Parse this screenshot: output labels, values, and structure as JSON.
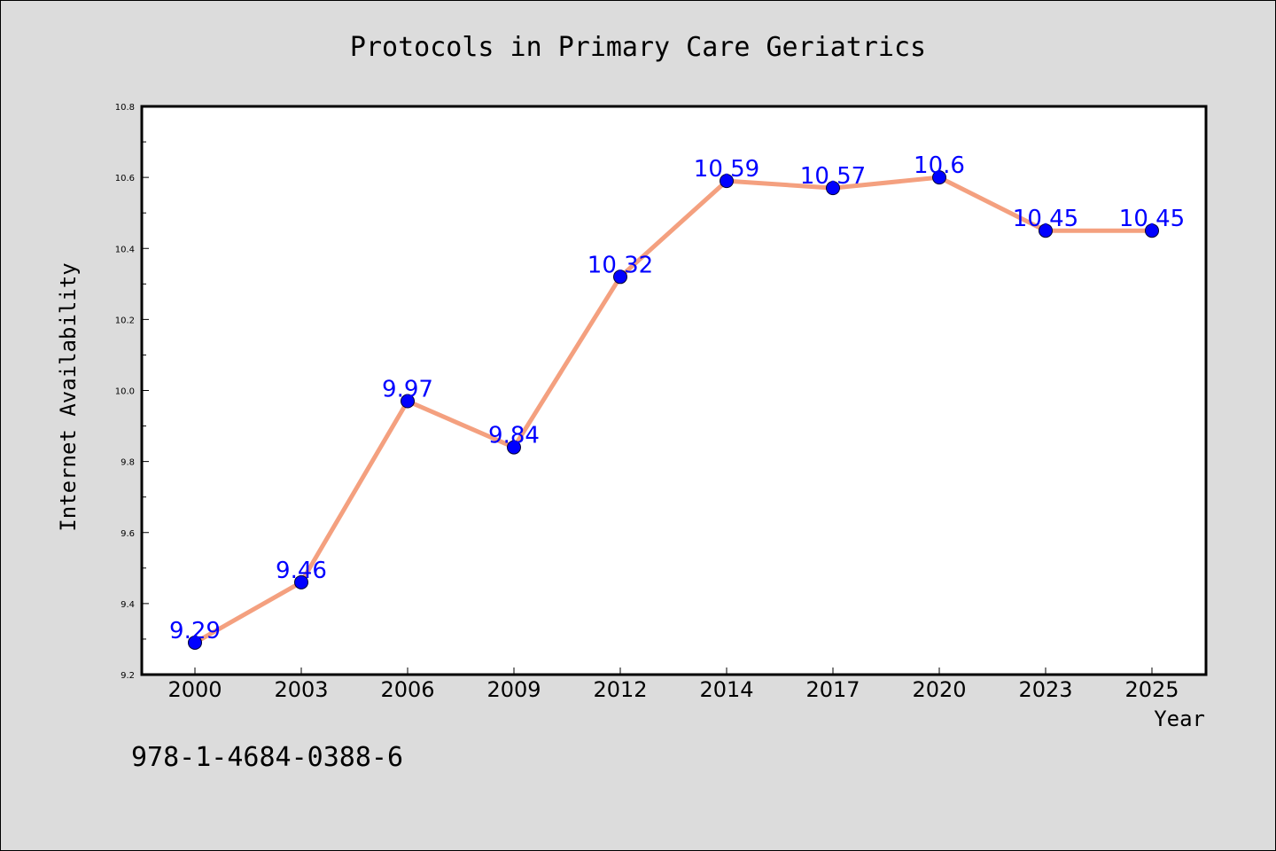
{
  "chart_data": {
    "type": "line",
    "title": "Protocols in Primary Care Geriatrics",
    "xlabel": "Year",
    "ylabel": "Internet Availability",
    "categories": [
      "2000",
      "2003",
      "2006",
      "2009",
      "2012",
      "2014",
      "2017",
      "2020",
      "2023",
      "2025"
    ],
    "values": [
      9.29,
      9.46,
      9.97,
      9.84,
      10.32,
      10.59,
      10.57,
      10.6,
      10.45,
      10.45
    ],
    "data_labels": [
      "9.29",
      "9.46",
      "9.97",
      "9.84",
      "10.32",
      "10.59",
      "10.57",
      "10.6",
      "10.45",
      "10.45"
    ],
    "ylim": [
      9.2,
      10.8
    ],
    "yticks": [
      "9.2",
      "9.4",
      "9.6",
      "9.8",
      "10.0",
      "10.2",
      "10.4",
      "10.6",
      "10.8"
    ],
    "grid": false,
    "legend": "none",
    "colors": {
      "line": "#f4a07f",
      "marker": "#0000ff",
      "label": "#0000ff",
      "background": "#dcdcdc",
      "plot_background": "#ffffff"
    }
  },
  "footer": {
    "isbn": "978-1-4684-0388-6"
  }
}
